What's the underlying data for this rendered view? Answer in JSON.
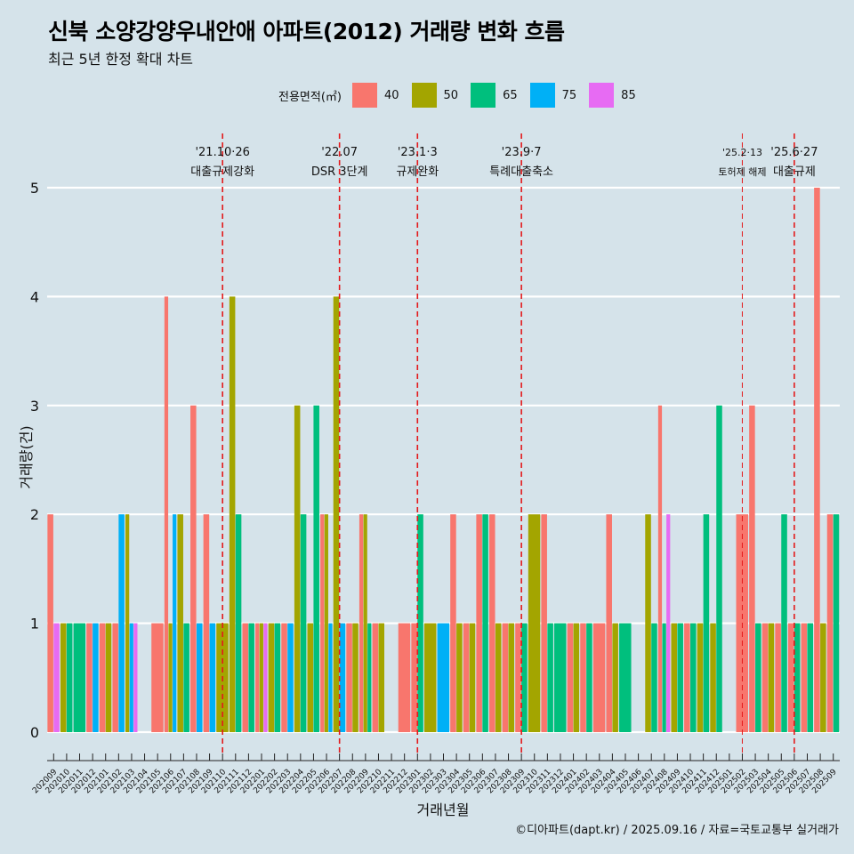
{
  "title": "신북 소양강양우내안애 아파트(2012) 거래량 변화 흐름",
  "subtitle": "최근 5년 한정 확대 차트",
  "caption": "©디아파트(dapt.kr) / 2025.09.16 / 자료=국토교통부 실거래가",
  "colors": {
    "background": "#d5e3ea",
    "grid": "#ffffff",
    "event_line": "#e31a1c"
  },
  "chart_data": {
    "type": "bar",
    "xlabel": "거래년월",
    "ylabel": "거래량(건)",
    "ylim": [
      0,
      5
    ],
    "yticks": [
      0,
      1,
      2,
      3,
      4,
      5
    ],
    "grid": "horizontal",
    "legend_title": "전용면적(㎡)",
    "legend_position": "top",
    "areas": [
      {
        "name": "40",
        "color": "#f8766d"
      },
      {
        "name": "50",
        "color": "#a3a500"
      },
      {
        "name": "65",
        "color": "#00bf7d"
      },
      {
        "name": "75",
        "color": "#00b0f6"
      },
      {
        "name": "85",
        "color": "#e76bf3"
      }
    ],
    "months": [
      "202009",
      "202010",
      "202011",
      "202012",
      "202101",
      "202102",
      "202103",
      "202104",
      "202105",
      "202106",
      "202107",
      "202108",
      "202109",
      "202110",
      "202111",
      "202112",
      "202201",
      "202202",
      "202203",
      "202204",
      "202205",
      "202206",
      "202207",
      "202208",
      "202209",
      "202210",
      "202211",
      "202212",
      "202301",
      "202302",
      "202303",
      "202304",
      "202305",
      "202306",
      "202307",
      "202308",
      "202309",
      "202310",
      "202311",
      "202312",
      "202401",
      "202402",
      "202403",
      "202404",
      "202405",
      "202406",
      "202407",
      "202408",
      "202409",
      "202410",
      "202411",
      "202412",
      "202501",
      "202502",
      "202503",
      "202504",
      "202505",
      "202506",
      "202507",
      "202508",
      "202509"
    ],
    "data": [
      {
        "month": "202009",
        "values": {
          "40": 2,
          "85": 1
        }
      },
      {
        "month": "202010",
        "values": {
          "50": 1,
          "65": 1
        }
      },
      {
        "month": "202011",
        "values": {
          "65": 1
        }
      },
      {
        "month": "202012",
        "values": {
          "40": 1,
          "75": 1
        }
      },
      {
        "month": "202101",
        "values": {
          "40": 1,
          "50": 1
        }
      },
      {
        "month": "202102",
        "values": {
          "40": 1,
          "75": 2
        }
      },
      {
        "month": "202103",
        "values": {
          "50": 2,
          "75": 1,
          "85": 1
        }
      },
      {
        "month": "202104",
        "values": {}
      },
      {
        "month": "202105",
        "values": {
          "40": 1
        }
      },
      {
        "month": "202106",
        "values": {
          "40": 4,
          "75": 2,
          "50": 1
        }
      },
      {
        "month": "202107",
        "values": {
          "50": 2,
          "65": 1
        }
      },
      {
        "month": "202108",
        "values": {
          "40": 3,
          "75": 1
        }
      },
      {
        "month": "202109",
        "values": {
          "40": 2,
          "75": 1
        }
      },
      {
        "month": "202110",
        "values": {
          "50": 1
        }
      },
      {
        "month": "202111",
        "values": {
          "50": 4,
          "65": 2
        }
      },
      {
        "month": "202112",
        "values": {
          "40": 1,
          "65": 1
        }
      },
      {
        "month": "202201",
        "values": {
          "40": 1,
          "50": 1,
          "85": 1
        }
      },
      {
        "month": "202202",
        "values": {
          "50": 1,
          "65": 1
        }
      },
      {
        "month": "202203",
        "values": {
          "40": 1,
          "75": 1
        }
      },
      {
        "month": "202204",
        "values": {
          "50": 3,
          "65": 2
        }
      },
      {
        "month": "202205",
        "values": {
          "50": 1,
          "65": 3
        }
      },
      {
        "month": "202206",
        "values": {
          "40": 2,
          "50": 2,
          "75": 1
        }
      },
      {
        "month": "202207",
        "values": {
          "50": 4,
          "75": 1
        }
      },
      {
        "month": "202208",
        "values": {
          "40": 1,
          "50": 1
        }
      },
      {
        "month": "202209",
        "values": {
          "40": 2,
          "50": 2,
          "65": 1
        }
      },
      {
        "month": "202210",
        "values": {
          "40": 1,
          "50": 1
        }
      },
      {
        "month": "202211",
        "values": {}
      },
      {
        "month": "202212",
        "values": {
          "40": 1
        }
      },
      {
        "month": "202301",
        "values": {
          "40": 1,
          "65": 2
        }
      },
      {
        "month": "202302",
        "values": {
          "50": 1
        }
      },
      {
        "month": "202303",
        "values": {
          "75": 1
        }
      },
      {
        "month": "202304",
        "values": {
          "40": 2,
          "50": 1
        }
      },
      {
        "month": "202305",
        "values": {
          "40": 1,
          "50": 1
        }
      },
      {
        "month": "202306",
        "values": {
          "40": 2,
          "65": 2
        }
      },
      {
        "month": "202307",
        "values": {
          "40": 2,
          "50": 1
        }
      },
      {
        "month": "202308",
        "values": {
          "40": 1,
          "50": 1
        }
      },
      {
        "month": "202309",
        "values": {
          "40": 1,
          "65": 1
        }
      },
      {
        "month": "202310",
        "values": {
          "50": 2
        }
      },
      {
        "month": "202311",
        "values": {
          "40": 2,
          "65": 1
        }
      },
      {
        "month": "202312",
        "values": {
          "65": 1
        }
      },
      {
        "month": "202401",
        "values": {
          "40": 1,
          "50": 1
        }
      },
      {
        "month": "202402",
        "values": {
          "40": 1,
          "65": 1
        }
      },
      {
        "month": "202403",
        "values": {
          "40": 1
        }
      },
      {
        "month": "202404",
        "values": {
          "40": 2,
          "50": 1
        }
      },
      {
        "month": "202405",
        "values": {
          "65": 1
        }
      },
      {
        "month": "202406",
        "values": {}
      },
      {
        "month": "202407",
        "values": {
          "50": 2,
          "65": 1
        }
      },
      {
        "month": "202408",
        "values": {
          "40": 3,
          "65": 1,
          "85": 2
        }
      },
      {
        "month": "202409",
        "values": {
          "50": 1,
          "65": 1
        }
      },
      {
        "month": "202410",
        "values": {
          "40": 1,
          "65": 1
        }
      },
      {
        "month": "202411",
        "values": {
          "50": 1,
          "65": 2
        }
      },
      {
        "month": "202412",
        "values": {
          "50": 1,
          "65": 3
        }
      },
      {
        "month": "202501",
        "values": {}
      },
      {
        "month": "202502",
        "values": {
          "40": 2
        }
      },
      {
        "month": "202503",
        "values": {
          "40": 3,
          "65": 1
        }
      },
      {
        "month": "202504",
        "values": {
          "40": 1,
          "50": 1
        }
      },
      {
        "month": "202505",
        "values": {
          "40": 1,
          "65": 2
        }
      },
      {
        "month": "202506",
        "values": {
          "40": 1,
          "65": 1
        }
      },
      {
        "month": "202507",
        "values": {
          "40": 1,
          "65": 1
        }
      },
      {
        "month": "202508",
        "values": {
          "40": 5,
          "50": 1
        }
      },
      {
        "month": "202509",
        "values": {
          "65": 2,
          "40": 2
        }
      }
    ],
    "events": [
      {
        "month": "202110",
        "date": "'21.10·26",
        "label": "대출규제강화",
        "style": "solid"
      },
      {
        "month": "202207",
        "date": "'22.07",
        "label": "DSR 3단계",
        "style": "solid"
      },
      {
        "month": "202301",
        "date": "'23.1·3",
        "label": "규제완화",
        "style": "solid"
      },
      {
        "month": "202309",
        "date": "'23.9·7",
        "label": "특례대출축소",
        "style": "solid"
      },
      {
        "month": "202502",
        "date": "'25.2·13",
        "label": "토허제 해제",
        "style": "thin"
      },
      {
        "month": "202506",
        "date": "'25.6·27",
        "label": "대출규제",
        "style": "solid"
      }
    ]
  }
}
